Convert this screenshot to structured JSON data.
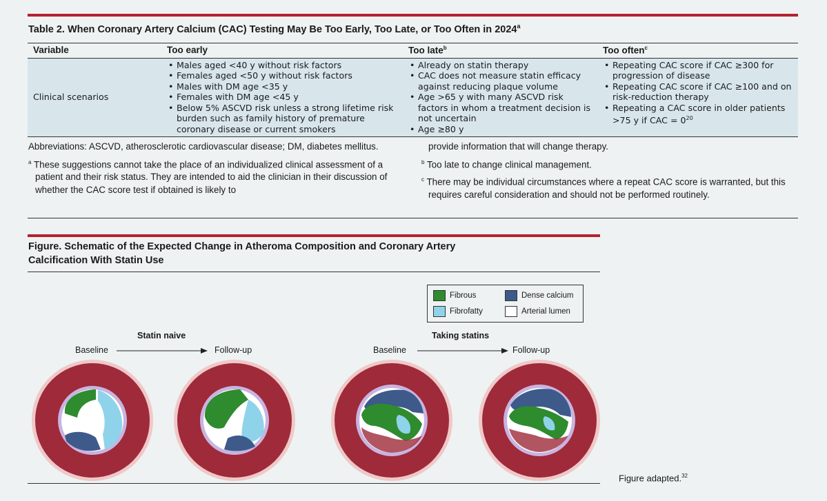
{
  "table2": {
    "title": "Table 2. When Coronary Artery Calcium (CAC) Testing May Be Too Early, Too Late, or Too Often in 2024",
    "title_sup": "a",
    "headers": {
      "variable": "Variable",
      "too_early": "Too early",
      "too_late": "Too late",
      "too_late_sup": "b",
      "too_often": "Too often",
      "too_often_sup": "c"
    },
    "row": {
      "variable": "Clinical scenarios",
      "too_early": [
        "Males aged <40 y without risk factors",
        "Females aged <50 y without risk factors",
        "Males with DM age <35 y",
        "Females with DM age <45 y",
        "Below 5% ASCVD risk unless a strong lifetime risk burden such as family history of premature coronary disease or current smokers"
      ],
      "too_late": [
        "Already on statin therapy",
        "CAC does not measure statin efficacy against reducing plaque volume",
        "Age >65 y with many ASCVD risk factors in whom a treatment decision is not uncertain",
        "Age ≥80 y"
      ],
      "too_often": [
        "Repeating CAC score if CAC ≥300 for progression of disease",
        "Repeating CAC score if CAC ≥100 and on risk-reduction therapy"
      ],
      "too_often_last": "Repeating a CAC score in older patients >75 y if CAC = 0",
      "too_often_last_sup": "20"
    },
    "footnotes": {
      "abbreviations": "Abbreviations: ASCVD, atherosclerotic cardiovascular disease; DM, diabetes mellitus.",
      "a_mark": "a",
      "a_text": "These suggestions cannot take the place of an individualized clinical assessment of a patient and their risk status. They are intended to aid the clinician in their discussion of whether the CAC score test if obtained is likely to",
      "a_cont": "provide information that will change therapy.",
      "b_mark": "b",
      "b_text": "Too late to change clinical management.",
      "c_mark": "c",
      "c_text": "There may be individual circumstances where a repeat CAC score is warranted, but this requires careful consideration and should not be performed routinely."
    }
  },
  "figure": {
    "title_line1": "Figure. Schematic of the Expected Change in Atheroma Composition and Coronary Artery",
    "title_line2": "Calcification With Statin Use",
    "legend": [
      {
        "label": "Fibrous",
        "color": "#2e8b2e"
      },
      {
        "label": "Dense calcium",
        "color": "#3d5a8a"
      },
      {
        "label": "Fibrofatty",
        "color": "#8fd3ea"
      },
      {
        "label": "Arterial lumen",
        "color": "#ffffff"
      }
    ],
    "groups": [
      {
        "title": "Statin naive",
        "left": "Baseline",
        "right": "Follow-up"
      },
      {
        "title": "Taking statins",
        "left": "Baseline",
        "right": "Follow-up"
      }
    ],
    "credit": "Figure adapted.",
    "credit_sup": "32"
  },
  "colors": {
    "accent_red": "#b5202e",
    "table_fill": "#d8e6ec",
    "background": "#eef2f2",
    "vessel_wall": "#9e2a3a",
    "vessel_outer": "#f0c8c8",
    "intima": "#c9b3e0"
  }
}
